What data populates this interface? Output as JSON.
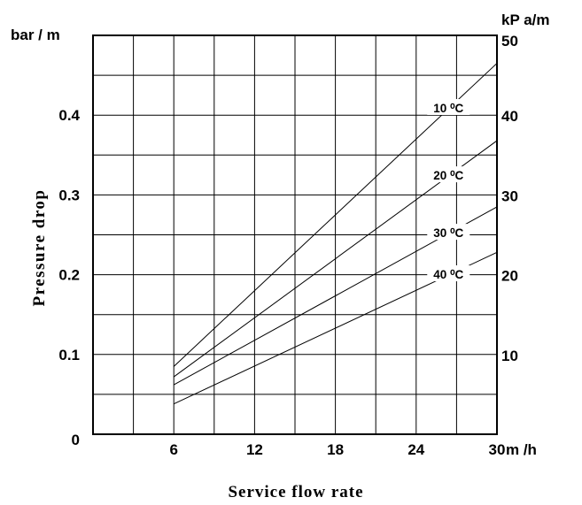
{
  "chart_data": {
    "type": "line",
    "xlabel": "Service flow rate",
    "ylabel": "Pressure drop",
    "y_unit_left": "bar / m",
    "y_unit_right": "kP a/m",
    "x_unit": "m /h",
    "xlim": [
      0,
      30
    ],
    "ylim": [
      0,
      0.5
    ],
    "grid": true,
    "x_ticks": [
      "6",
      "12",
      "18",
      "24",
      "30"
    ],
    "x_tick_values": [
      6,
      12,
      18,
      24,
      30
    ],
    "y_left_ticks": [
      "0",
      "0.1",
      "0.2",
      "0.3",
      "0.4"
    ],
    "y_left_tick_values": [
      0,
      0.1,
      0.2,
      0.3,
      0.4
    ],
    "y_right_ticks": [
      "10",
      "20",
      "30",
      "40",
      "50"
    ],
    "y_right_tick_values": [
      0.1,
      0.2,
      0.3,
      0.4,
      0.5
    ],
    "series": [
      {
        "name": "10 ⁰C",
        "x": [
          6,
          30
        ],
        "y": [
          0.085,
          0.465
        ]
      },
      {
        "name": "20 ⁰C",
        "x": [
          6,
          30
        ],
        "y": [
          0.072,
          0.368
        ]
      },
      {
        "name": "30 ⁰C",
        "x": [
          6,
          30
        ],
        "y": [
          0.062,
          0.285
        ]
      },
      {
        "name": "40 ⁰C",
        "x": [
          6,
          30
        ],
        "y": [
          0.038,
          0.228
        ]
      }
    ]
  }
}
